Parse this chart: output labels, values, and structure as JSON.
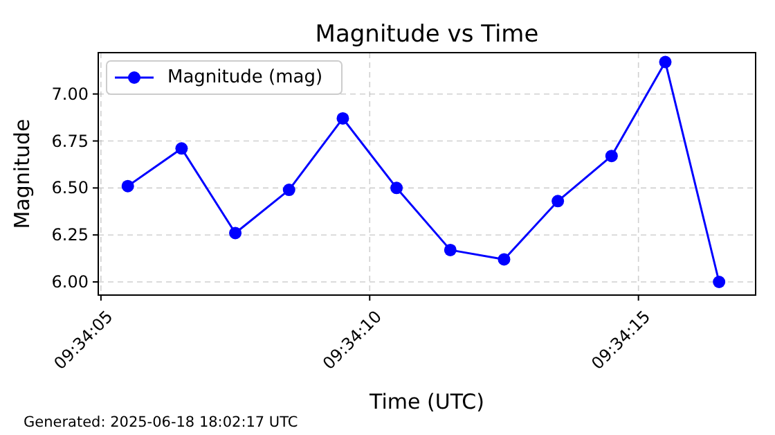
{
  "chart_data": {
    "type": "line",
    "title": "Magnitude vs Time",
    "xlabel": "Time (UTC)",
    "ylabel": "Magnitude",
    "x": [
      "2025-06-18T09:34:05.500",
      "2025-06-18T09:34:06.500",
      "2025-06-18T09:34:07.500",
      "2025-06-18T09:34:08.500",
      "2025-06-18T09:34:09.500",
      "2025-06-18T09:34:10.500",
      "2025-06-18T09:34:11.500",
      "2025-06-18T09:34:12.500",
      "2025-06-18T09:34:13.500",
      "2025-06-18T09:34:14.500",
      "2025-06-18T09:34:15.500",
      "2025-06-18T09:34:16.500"
    ],
    "series": [
      {
        "name": "Magnitude (mag)",
        "color": "#0000ff",
        "values": [
          6.51,
          6.71,
          6.26,
          6.49,
          6.87,
          6.5,
          6.17,
          6.12,
          6.43,
          6.67,
          7.17,
          6.0
        ]
      }
    ],
    "xlim": [
      "2025-06-18T09:34:04.950",
      "2025-06-18T09:34:17.180"
    ],
    "xticks": [
      {
        "value": "2025-06-18T09:34:05",
        "label": "09:34:05"
      },
      {
        "value": "2025-06-18T09:34:10",
        "label": "09:34:10"
      },
      {
        "value": "2025-06-18T09:34:15",
        "label": "09:34:15"
      }
    ],
    "ylim": [
      5.93,
      7.22
    ],
    "yticks": [
      {
        "value": 6,
        "label": "6.00"
      },
      {
        "value": 6.25,
        "label": "6.25"
      },
      {
        "value": 6.5,
        "label": "6.50"
      },
      {
        "value": 6.75,
        "label": "6.75"
      },
      {
        "value": 7,
        "label": "7.00"
      }
    ],
    "grid": true,
    "legend": "top left",
    "marker": "circle",
    "line_style": "solid",
    "annotations": [
      "Generated: 2025-06-18 18:02:17 UTC"
    ]
  }
}
